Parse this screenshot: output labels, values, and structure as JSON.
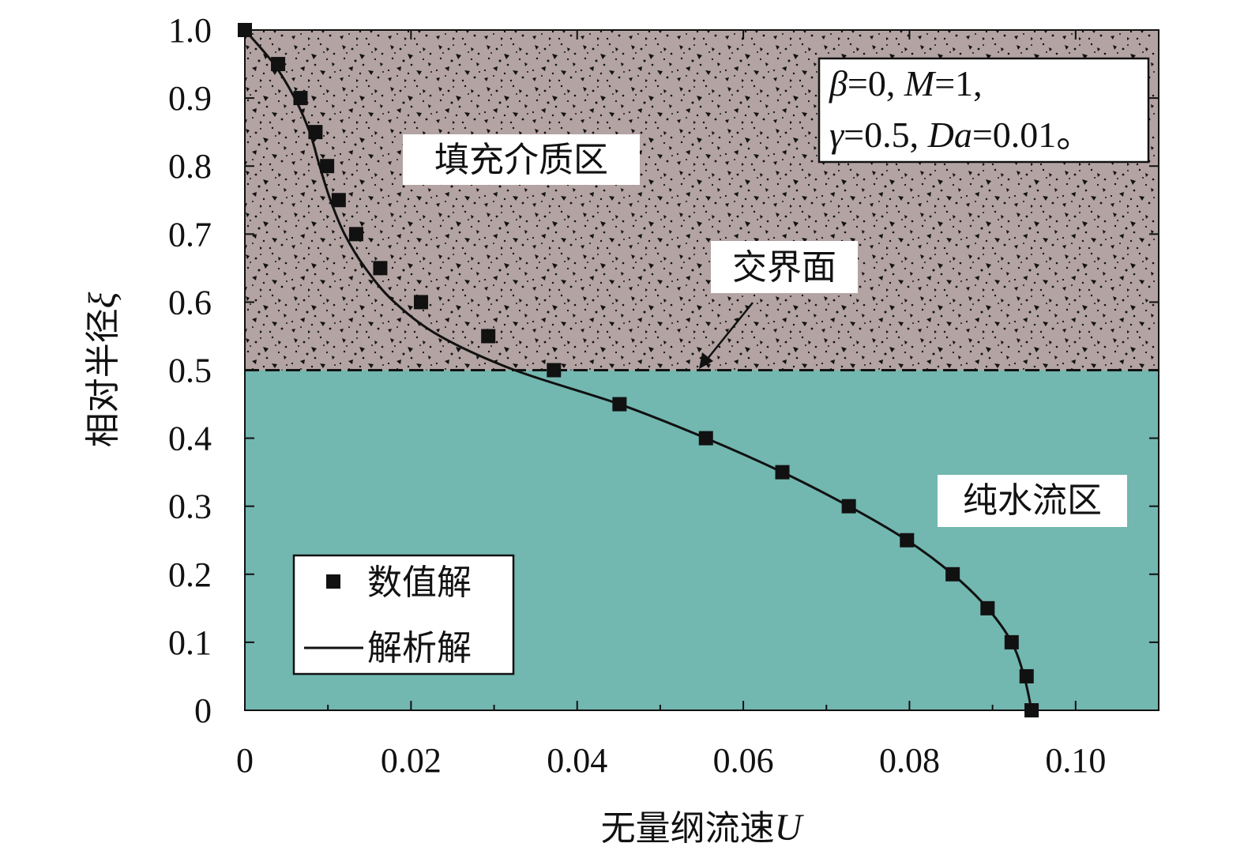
{
  "chart_data": {
    "type": "scatter",
    "xlabel": "无量纲流速",
    "xlabel_symbol": "U",
    "ylabel": "相对半径",
    "ylabel_symbol": "ξ",
    "xlim": [
      0,
      0.11
    ],
    "ylim": [
      0,
      1.0
    ],
    "x_ticks": [
      0,
      0.02,
      0.04,
      0.06,
      0.08,
      0.1
    ],
    "x_tick_labels": [
      "0",
      "0.02",
      "0.04",
      "0.06",
      "0.08",
      "0.10"
    ],
    "y_ticks": [
      0,
      0.1,
      0.2,
      0.3,
      0.4,
      0.5,
      0.6,
      0.7,
      0.8,
      0.9,
      1.0
    ],
    "y_tick_labels": [
      "0",
      "0.1",
      "0.2",
      "0.3",
      "0.4",
      "0.5",
      "0.6",
      "0.7",
      "0.8",
      "0.9",
      "1.0"
    ],
    "series": [
      {
        "name": "数值解",
        "marker": "square",
        "points": [
          {
            "x": 0.0,
            "y": 1.0
          },
          {
            "x": 0.004,
            "y": 0.95
          },
          {
            "x": 0.0067,
            "y": 0.9
          },
          {
            "x": 0.0085,
            "y": 0.85
          },
          {
            "x": 0.0099,
            "y": 0.8
          },
          {
            "x": 0.0113,
            "y": 0.75
          },
          {
            "x": 0.0134,
            "y": 0.7
          },
          {
            "x": 0.0163,
            "y": 0.65
          },
          {
            "x": 0.0212,
            "y": 0.6
          },
          {
            "x": 0.0293,
            "y": 0.55
          },
          {
            "x": 0.0372,
            "y": 0.5
          },
          {
            "x": 0.0451,
            "y": 0.45
          },
          {
            "x": 0.0555,
            "y": 0.4
          },
          {
            "x": 0.0647,
            "y": 0.35
          },
          {
            "x": 0.0727,
            "y": 0.3
          },
          {
            "x": 0.0797,
            "y": 0.25
          },
          {
            "x": 0.0852,
            "y": 0.2
          },
          {
            "x": 0.0894,
            "y": 0.15
          },
          {
            "x": 0.0923,
            "y": 0.1
          },
          {
            "x": 0.0941,
            "y": 0.05
          },
          {
            "x": 0.0947,
            "y": 0.0
          }
        ]
      },
      {
        "name": "解析解",
        "style": "line",
        "points": [
          {
            "x": 0.0,
            "y": 1.0
          },
          {
            "x": 0.0035,
            "y": 0.95
          },
          {
            "x": 0.006,
            "y": 0.9
          },
          {
            "x": 0.0078,
            "y": 0.85
          },
          {
            "x": 0.009,
            "y": 0.8
          },
          {
            "x": 0.0103,
            "y": 0.75
          },
          {
            "x": 0.012,
            "y": 0.7
          },
          {
            "x": 0.0145,
            "y": 0.65
          },
          {
            "x": 0.018,
            "y": 0.6
          },
          {
            "x": 0.0235,
            "y": 0.55
          },
          {
            "x": 0.0325,
            "y": 0.5
          },
          {
            "x": 0.0451,
            "y": 0.45
          },
          {
            "x": 0.0555,
            "y": 0.4
          },
          {
            "x": 0.0647,
            "y": 0.35
          },
          {
            "x": 0.0727,
            "y": 0.3
          },
          {
            "x": 0.0797,
            "y": 0.25
          },
          {
            "x": 0.0852,
            "y": 0.2
          },
          {
            "x": 0.0894,
            "y": 0.15
          },
          {
            "x": 0.0923,
            "y": 0.1
          },
          {
            "x": 0.0938,
            "y": 0.05
          },
          {
            "x": 0.0947,
            "y": 0.0
          }
        ]
      }
    ],
    "interface_y": 0.5,
    "regions": {
      "porous": {
        "label": "填充介质区",
        "y_range": [
          0.5,
          1.0
        ],
        "color": "#b3a3a3"
      },
      "fluid": {
        "label": "纯水流区",
        "y_range": [
          0.0,
          0.5
        ],
        "color": "#72b7b0"
      }
    },
    "annotations": {
      "interface_label": "交界面",
      "params_line1": [
        "β",
        "=0, ",
        "M",
        "=1,"
      ],
      "params_line2": [
        "γ",
        "=0.5, ",
        "Da",
        "=0.01。"
      ]
    },
    "legend": {
      "placement": "bottom-left",
      "entries": [
        "数值解",
        "解析解"
      ]
    }
  }
}
